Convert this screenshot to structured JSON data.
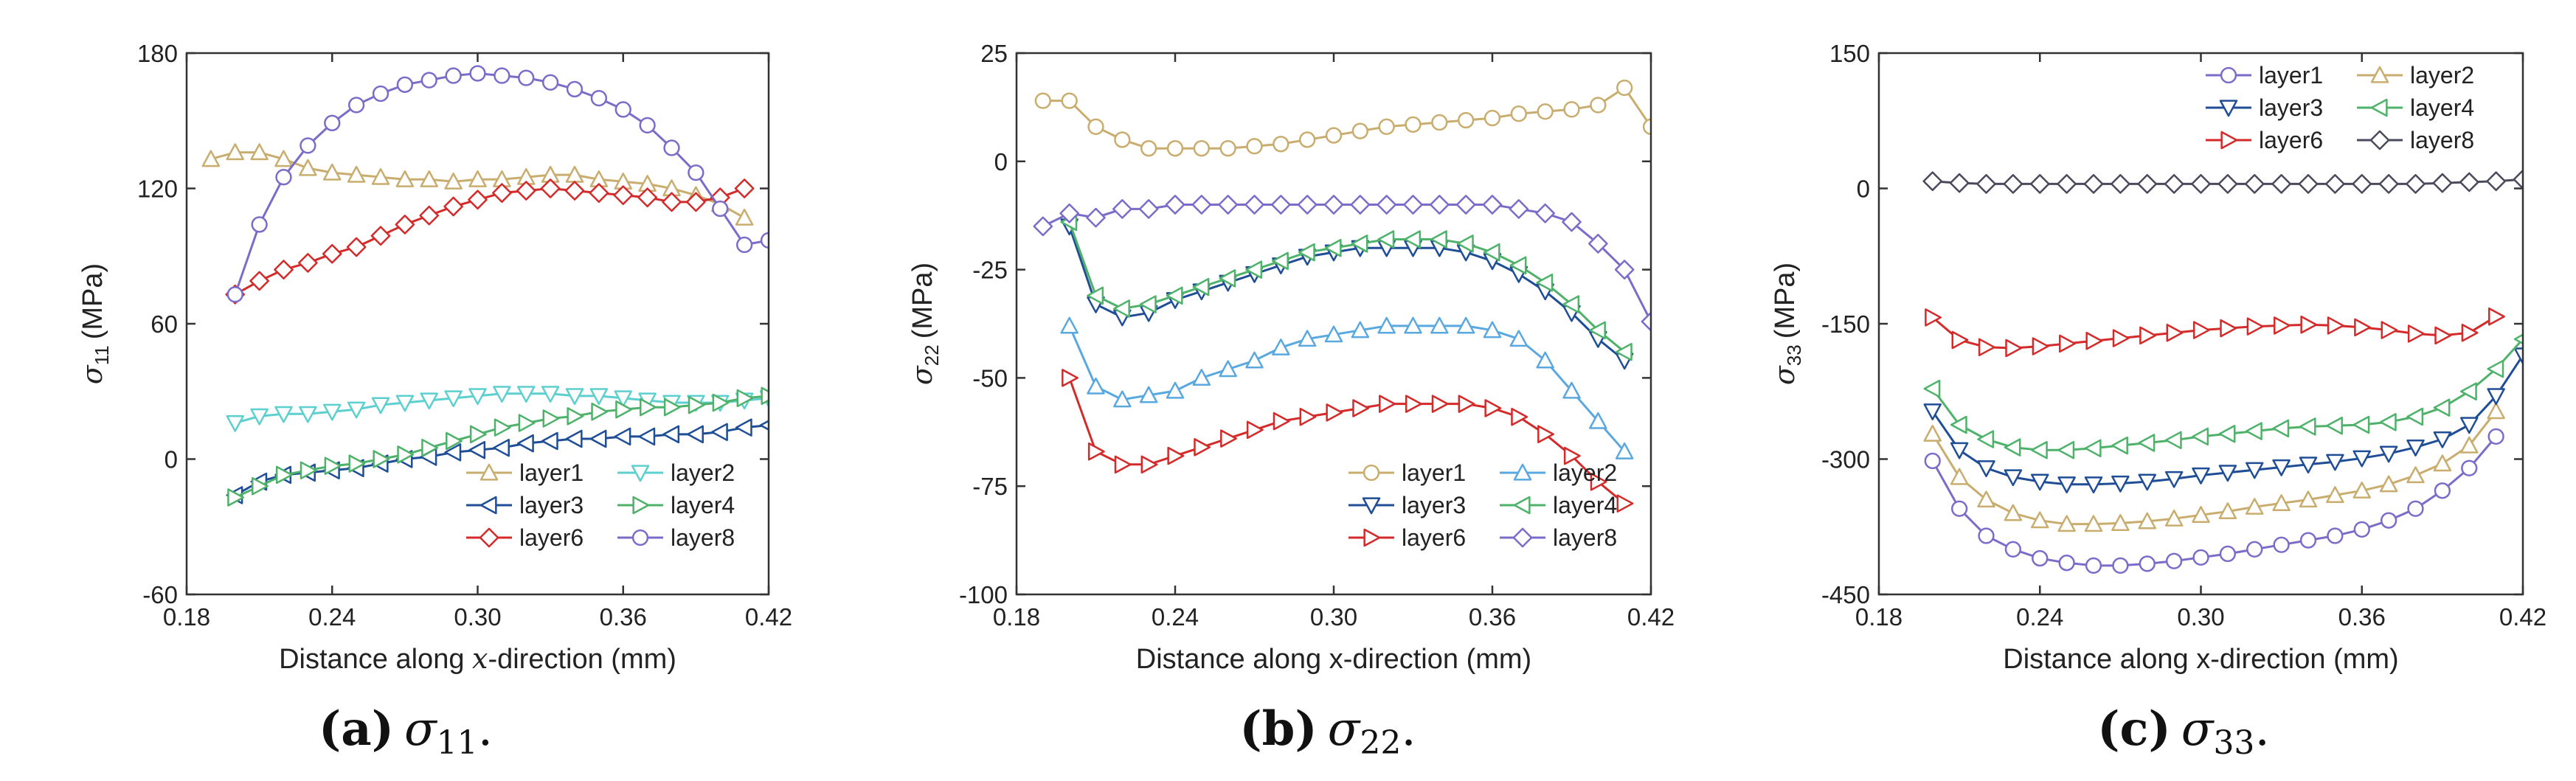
{
  "chart_data": [
    {
      "type": "line",
      "id": "a",
      "panel_label": "(a)",
      "caption_symbol": "σ",
      "caption_sub": "11",
      "ylabel_symbol": "σ",
      "ylabel_sub": "11",
      "ylabel_unit": "(MPa)",
      "xlabel_prefix": "Distance along ",
      "xlabel_var": "x",
      "xlabel_suffix": "-direction (mm)",
      "xlim": [
        0.18,
        0.42
      ],
      "ylim": [
        -60,
        180
      ],
      "xticks": [
        "0.18",
        "0.24",
        "0.30",
        "0.36",
        "0.42"
      ],
      "yticks": [
        "-60",
        "0",
        "60",
        "120",
        "180"
      ],
      "legend": {
        "position": "bottom-right",
        "columns": 2
      },
      "series": [
        {
          "name": "layer1",
          "color": "#c9ad6e",
          "marker": "triangle-up",
          "x": [
            0.19,
            0.2,
            0.21,
            0.22,
            0.23,
            0.24,
            0.25,
            0.26,
            0.27,
            0.28,
            0.29,
            0.3,
            0.31,
            0.32,
            0.33,
            0.34,
            0.35,
            0.36,
            0.37,
            0.38,
            0.39,
            0.4,
            0.41
          ],
          "y": [
            133,
            136,
            136,
            133,
            129,
            127,
            126,
            125,
            124,
            124,
            123,
            124,
            124,
            125,
            126,
            126,
            124,
            123,
            122,
            120,
            117,
            113,
            107
          ]
        },
        {
          "name": "layer2",
          "color": "#5dcfcf",
          "marker": "triangle-down",
          "x": [
            0.2,
            0.21,
            0.22,
            0.23,
            0.24,
            0.25,
            0.26,
            0.27,
            0.28,
            0.29,
            0.3,
            0.31,
            0.32,
            0.33,
            0.34,
            0.35,
            0.36,
            0.37,
            0.38,
            0.39,
            0.4,
            0.41,
            0.42
          ],
          "y": [
            16,
            19,
            20,
            20,
            21,
            22,
            24,
            25,
            26,
            27,
            28,
            29,
            29,
            29,
            28,
            28,
            27,
            26,
            25,
            25,
            25,
            26,
            27
          ]
        },
        {
          "name": "layer3",
          "color": "#1f4e96",
          "marker": "triangle-left",
          "x": [
            0.2,
            0.21,
            0.22,
            0.23,
            0.24,
            0.25,
            0.26,
            0.27,
            0.28,
            0.29,
            0.3,
            0.31,
            0.32,
            0.33,
            0.34,
            0.35,
            0.36,
            0.37,
            0.38,
            0.39,
            0.4,
            0.41,
            0.42
          ],
          "y": [
            -16,
            -10,
            -7,
            -6,
            -5,
            -4,
            -2,
            0,
            1,
            3,
            4,
            5,
            7,
            8,
            9,
            9,
            10,
            10,
            11,
            11,
            12,
            14,
            15
          ]
        },
        {
          "name": "layer4",
          "color": "#4fb26a",
          "marker": "triangle-right",
          "x": [
            0.2,
            0.21,
            0.22,
            0.23,
            0.24,
            0.25,
            0.26,
            0.27,
            0.28,
            0.29,
            0.3,
            0.31,
            0.32,
            0.33,
            0.34,
            0.35,
            0.36,
            0.37,
            0.38,
            0.39,
            0.4,
            0.41,
            0.42
          ],
          "y": [
            -17,
            -12,
            -7,
            -5,
            -3,
            -2,
            0,
            2,
            5,
            8,
            11,
            14,
            16,
            18,
            19,
            21,
            22,
            23,
            23,
            24,
            25,
            27,
            28
          ]
        },
        {
          "name": "layer6",
          "color": "#d42a2a",
          "marker": "diamond",
          "x": [
            0.2,
            0.21,
            0.22,
            0.23,
            0.24,
            0.25,
            0.26,
            0.27,
            0.28,
            0.29,
            0.3,
            0.31,
            0.32,
            0.33,
            0.34,
            0.35,
            0.36,
            0.37,
            0.38,
            0.39,
            0.4,
            0.41
          ],
          "y": [
            73,
            79,
            84,
            87,
            91,
            94,
            99,
            104,
            108,
            112,
            115,
            118,
            119,
            120,
            119,
            118,
            117,
            116,
            114,
            114,
            116,
            120
          ]
        },
        {
          "name": "layer8",
          "color": "#7b6cc9",
          "marker": "circle",
          "x": [
            0.2,
            0.21,
            0.22,
            0.23,
            0.24,
            0.25,
            0.26,
            0.27,
            0.28,
            0.29,
            0.3,
            0.31,
            0.32,
            0.33,
            0.34,
            0.35,
            0.36,
            0.37,
            0.38,
            0.39,
            0.4,
            0.41,
            0.42
          ],
          "y": [
            73,
            104,
            125,
            139,
            149,
            157,
            162,
            166,
            168,
            170,
            171,
            170,
            169,
            167,
            164,
            160,
            155,
            148,
            138,
            127,
            111,
            95,
            97
          ]
        }
      ]
    },
    {
      "type": "line",
      "id": "b",
      "panel_label": "(b)",
      "caption_symbol": "σ",
      "caption_sub": "22",
      "ylabel_symbol": "σ",
      "ylabel_sub": "22",
      "ylabel_unit": "(MPa)",
      "xlabel_prefix": "Distance along x-direction (mm)",
      "xlabel_var": "",
      "xlabel_suffix": "",
      "xlim": [
        0.18,
        0.42
      ],
      "ylim": [
        -100,
        25
      ],
      "xticks": [
        "0.18",
        "0.24",
        "0.30",
        "0.36",
        "0.42"
      ],
      "yticks": [
        "-100",
        "-75",
        "-50",
        "-25",
        "0",
        "25"
      ],
      "legend": {
        "position": "bottom-right",
        "columns": 2
      },
      "series": [
        {
          "name": "layer1",
          "color": "#c9ad6e",
          "marker": "circle",
          "x": [
            0.19,
            0.2,
            0.21,
            0.22,
            0.23,
            0.24,
            0.25,
            0.26,
            0.27,
            0.28,
            0.29,
            0.3,
            0.31,
            0.32,
            0.33,
            0.34,
            0.35,
            0.36,
            0.37,
            0.38,
            0.39,
            0.4,
            0.41,
            0.42
          ],
          "y": [
            14,
            14,
            8,
            5,
            3,
            3,
            3,
            3,
            3.5,
            4,
            5,
            6,
            7,
            8,
            8.5,
            9,
            9.5,
            10,
            11,
            11.5,
            12,
            13,
            17,
            8
          ]
        },
        {
          "name": "layer2",
          "color": "#5aa8e0",
          "marker": "triangle-up",
          "x": [
            0.2,
            0.21,
            0.22,
            0.23,
            0.24,
            0.25,
            0.26,
            0.27,
            0.28,
            0.29,
            0.3,
            0.31,
            0.32,
            0.33,
            0.34,
            0.35,
            0.36,
            0.37,
            0.38,
            0.39,
            0.4,
            0.41
          ],
          "y": [
            -38,
            -52,
            -55,
            -54,
            -53,
            -50,
            -48,
            -46,
            -43,
            -41,
            -40,
            -39,
            -38,
            -38,
            -38,
            -38,
            -39,
            -41,
            -46,
            -53,
            -60,
            -67
          ]
        },
        {
          "name": "layer3",
          "color": "#1f4e96",
          "marker": "triangle-down",
          "x": [
            0.2,
            0.21,
            0.22,
            0.23,
            0.24,
            0.25,
            0.26,
            0.27,
            0.28,
            0.29,
            0.3,
            0.31,
            0.32,
            0.33,
            0.34,
            0.35,
            0.36,
            0.37,
            0.38,
            0.39,
            0.4,
            0.41
          ],
          "y": [
            -15,
            -33,
            -36,
            -35,
            -32,
            -30,
            -28,
            -26,
            -24,
            -22,
            -21,
            -20,
            -20,
            -20,
            -20,
            -21,
            -23,
            -26,
            -30,
            -35,
            -41,
            -46
          ]
        },
        {
          "name": "layer4",
          "color": "#4fb26a",
          "marker": "triangle-left",
          "x": [
            0.2,
            0.21,
            0.22,
            0.23,
            0.24,
            0.25,
            0.26,
            0.27,
            0.28,
            0.29,
            0.3,
            0.31,
            0.32,
            0.33,
            0.34,
            0.35,
            0.36,
            0.37,
            0.38,
            0.39,
            0.4,
            0.41
          ],
          "y": [
            -14,
            -31,
            -34,
            -33,
            -31,
            -29,
            -27,
            -25,
            -23,
            -21,
            -20,
            -19,
            -18,
            -18,
            -18,
            -19,
            -21,
            -24,
            -28,
            -33,
            -39,
            -44
          ]
        },
        {
          "name": "layer6",
          "color": "#d42a2a",
          "marker": "triangle-right",
          "x": [
            0.2,
            0.21,
            0.22,
            0.23,
            0.24,
            0.25,
            0.26,
            0.27,
            0.28,
            0.29,
            0.3,
            0.31,
            0.32,
            0.33,
            0.34,
            0.35,
            0.36,
            0.37,
            0.38,
            0.39,
            0.4,
            0.41
          ],
          "y": [
            -50,
            -67,
            -70,
            -70,
            -68,
            -66,
            -64,
            -62,
            -60,
            -59,
            -58,
            -57,
            -56,
            -56,
            -56,
            -56,
            -57,
            -59,
            -63,
            -68,
            -74,
            -79
          ]
        },
        {
          "name": "layer8",
          "color": "#7b6cc9",
          "marker": "diamond",
          "x": [
            0.19,
            0.2,
            0.21,
            0.22,
            0.23,
            0.24,
            0.25,
            0.26,
            0.27,
            0.28,
            0.29,
            0.3,
            0.31,
            0.32,
            0.33,
            0.34,
            0.35,
            0.36,
            0.37,
            0.38,
            0.39,
            0.4,
            0.41,
            0.42
          ],
          "y": [
            -15,
            -12,
            -13,
            -11,
            -11,
            -10,
            -10,
            -10,
            -10,
            -10,
            -10,
            -10,
            -10,
            -10,
            -10,
            -10,
            -10,
            -10,
            -11,
            -12,
            -14,
            -19,
            -25,
            -37
          ]
        }
      ]
    },
    {
      "type": "line",
      "id": "c",
      "panel_label": "(c)",
      "caption_symbol": "σ",
      "caption_sub": "33",
      "ylabel_symbol": "σ",
      "ylabel_sub": "33",
      "ylabel_unit": "(MPa)",
      "xlabel_prefix": "Distance along x-direction (mm)",
      "xlabel_var": "",
      "xlabel_suffix": "",
      "xlim": [
        0.18,
        0.42
      ],
      "ylim": [
        -450,
        150
      ],
      "xticks": [
        "0.18",
        "0.24",
        "0.30",
        "0.36",
        "0.42"
      ],
      "yticks": [
        "-450",
        "-300",
        "-150",
        "0",
        "150"
      ],
      "legend": {
        "position": "top-right",
        "columns": 2
      },
      "series": [
        {
          "name": "layer1",
          "color": "#7b6cc9",
          "marker": "circle",
          "x": [
            0.2,
            0.21,
            0.22,
            0.23,
            0.24,
            0.25,
            0.26,
            0.27,
            0.28,
            0.29,
            0.3,
            0.31,
            0.32,
            0.33,
            0.34,
            0.35,
            0.36,
            0.37,
            0.38,
            0.39,
            0.4,
            0.41
          ],
          "y": [
            -302,
            -355,
            -385,
            -400,
            -410,
            -415,
            -418,
            -418,
            -416,
            -413,
            -409,
            -405,
            -400,
            -395,
            -390,
            -385,
            -378,
            -368,
            -355,
            -335,
            -310,
            -275
          ]
        },
        {
          "name": "layer2",
          "color": "#c9ad6e",
          "marker": "triangle-up",
          "x": [
            0.2,
            0.21,
            0.22,
            0.23,
            0.24,
            0.25,
            0.26,
            0.27,
            0.28,
            0.29,
            0.3,
            0.31,
            0.32,
            0.33,
            0.34,
            0.35,
            0.36,
            0.37,
            0.38,
            0.39,
            0.4,
            0.41
          ],
          "y": [
            -272,
            -320,
            -345,
            -360,
            -368,
            -372,
            -372,
            -371,
            -369,
            -366,
            -362,
            -358,
            -353,
            -349,
            -345,
            -340,
            -335,
            -328,
            -318,
            -305,
            -285,
            -247
          ]
        },
        {
          "name": "layer3",
          "color": "#1f4e96",
          "marker": "triangle-down",
          "x": [
            0.2,
            0.21,
            0.22,
            0.23,
            0.24,
            0.25,
            0.26,
            0.27,
            0.28,
            0.29,
            0.3,
            0.31,
            0.32,
            0.33,
            0.34,
            0.35,
            0.36,
            0.37,
            0.38,
            0.39,
            0.4,
            0.41,
            0.42
          ],
          "y": [
            -247,
            -290,
            -310,
            -320,
            -325,
            -328,
            -328,
            -327,
            -325,
            -322,
            -318,
            -315,
            -312,
            -309,
            -306,
            -303,
            -299,
            -294,
            -287,
            -278,
            -262,
            -230,
            -185
          ]
        },
        {
          "name": "layer4",
          "color": "#4fb26a",
          "marker": "triangle-left",
          "x": [
            0.2,
            0.21,
            0.22,
            0.23,
            0.24,
            0.25,
            0.26,
            0.27,
            0.28,
            0.29,
            0.3,
            0.31,
            0.32,
            0.33,
            0.34,
            0.35,
            0.36,
            0.37,
            0.38,
            0.39,
            0.4,
            0.41,
            0.42
          ],
          "y": [
            -222,
            -262,
            -278,
            -287,
            -290,
            -290,
            -288,
            -285,
            -282,
            -279,
            -275,
            -272,
            -269,
            -266,
            -264,
            -263,
            -262,
            -259,
            -253,
            -243,
            -225,
            -200,
            -167
          ]
        },
        {
          "name": "layer6",
          "color": "#d42a2a",
          "marker": "triangle-right",
          "x": [
            0.2,
            0.21,
            0.22,
            0.23,
            0.24,
            0.25,
            0.26,
            0.27,
            0.28,
            0.29,
            0.3,
            0.31,
            0.32,
            0.33,
            0.34,
            0.35,
            0.36,
            0.37,
            0.38,
            0.39,
            0.4,
            0.41
          ],
          "y": [
            -143,
            -168,
            -176,
            -177,
            -175,
            -172,
            -169,
            -166,
            -163,
            -160,
            -157,
            -155,
            -153,
            -152,
            -151,
            -152,
            -154,
            -157,
            -161,
            -163,
            -160,
            -142
          ]
        },
        {
          "name": "layer8",
          "color": "#4a4a5c",
          "marker": "diamond",
          "x": [
            0.2,
            0.21,
            0.22,
            0.23,
            0.24,
            0.25,
            0.26,
            0.27,
            0.28,
            0.29,
            0.3,
            0.31,
            0.32,
            0.33,
            0.34,
            0.35,
            0.36,
            0.37,
            0.38,
            0.39,
            0.4,
            0.41,
            0.42
          ],
          "y": [
            8,
            6,
            5,
            5,
            5,
            5,
            5,
            5,
            5,
            5,
            5,
            5,
            5,
            5,
            5,
            5,
            5,
            5,
            5,
            6,
            7,
            8,
            10
          ]
        }
      ]
    }
  ]
}
